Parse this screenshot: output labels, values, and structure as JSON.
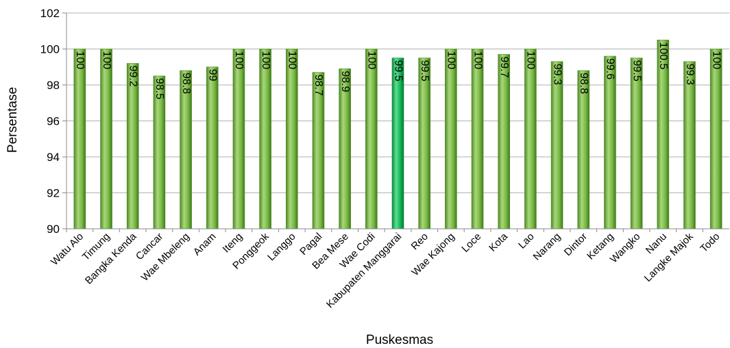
{
  "chart_data": {
    "type": "bar",
    "title": "",
    "xlabel": "Puskesmas",
    "ylabel": "Persentase",
    "ylim": [
      90,
      102
    ],
    "yticks": [
      90,
      92,
      94,
      96,
      98,
      100,
      102
    ],
    "grid": true,
    "legend": "none",
    "categories": [
      "Watu Alo",
      "Timung",
      "Bangka Kenda",
      "Cancar",
      "Wae Mbeleng",
      "Anam",
      "Iteng",
      "Ponggeok",
      "Langgo",
      "Pagal",
      "Bea Mese",
      "Wae Codi",
      "Kabupaten Manggarai",
      "Reo",
      "Wae Kajong",
      "Loce",
      "Kota",
      "Lao",
      "Narang",
      "Dintor",
      "Ketang",
      "Wangko",
      "Nanu",
      "Langke Majok",
      "Todo"
    ],
    "values": [
      100,
      100,
      99.2,
      98.5,
      98.8,
      99,
      100,
      100,
      100,
      98.7,
      98.9,
      100,
      99.5,
      99.5,
      100,
      100,
      99.7,
      100,
      99.3,
      98.8,
      99.6,
      99.5,
      100.5,
      99.3,
      100
    ],
    "highlight_category": "Kabupaten Manggarai",
    "colors": {
      "bar": "#77b843",
      "bar_dark": "#4f8a25",
      "bar_light": "#a9d77c",
      "highlight": "#14b45a",
      "highlight_dark": "#0b8a40",
      "highlight_light": "#5ee08f",
      "grid": "#b0b0b0"
    }
  }
}
